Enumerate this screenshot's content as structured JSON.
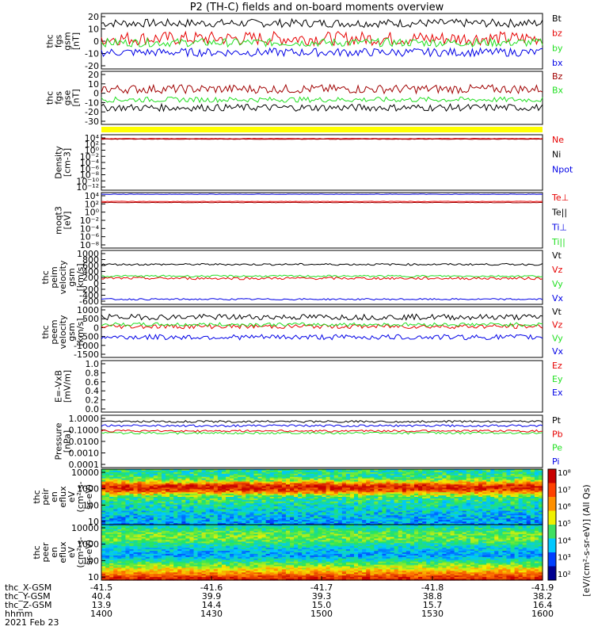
{
  "title": "P2 (TH-C) fields and on-board moments overview",
  "colors": {
    "black": "#000000",
    "red": "#e60000",
    "darkred": "#a00000",
    "green": "#22e022",
    "blue": "#0000e6",
    "yellow": "#ffff00"
  },
  "chart_data": [
    {
      "type": "line",
      "ylabel": [
        "thc",
        "fgs",
        "gsm",
        "[nT]"
      ],
      "ylim": [
        -20,
        20
      ],
      "yticks": [
        20,
        10,
        0,
        -10,
        -20
      ],
      "series": [
        {
          "name": "Bt",
          "color": "black",
          "mean": 13,
          "noise": 3
        },
        {
          "name": "bz",
          "color": "red",
          "mean": 2,
          "noise": 5
        },
        {
          "name": "by",
          "color": "green",
          "mean": -1,
          "noise": 3
        },
        {
          "name": "bx",
          "color": "blue",
          "mean": -8,
          "noise": 3
        }
      ]
    },
    {
      "type": "line",
      "ylabel": [
        "thc",
        "fgs",
        "gse",
        "[nT]"
      ],
      "ylim": [
        -35,
        25
      ],
      "yticks": [
        20,
        10,
        0,
        -10,
        -20,
        -30
      ],
      "series": [
        {
          "name": "Bz",
          "color": "darkred",
          "mean": 5,
          "noise": 5
        },
        {
          "name": "Bx",
          "color": "green",
          "mean": -7,
          "noise": 3
        },
        {
          "name": "",
          "color": "black",
          "mean": -16,
          "noise": 4
        }
      ]
    },
    {
      "type": "flag",
      "color": "yellow"
    },
    {
      "type": "line",
      "ylabel": [
        "Density",
        "[cm-3]"
      ],
      "scale": "log",
      "yticks": [
        "10⁴",
        "10²",
        "10⁰",
        "10⁻²",
        "10⁻⁴",
        "10⁻⁶",
        "10⁻⁸",
        "10⁻¹⁰",
        "10⁻¹²"
      ],
      "series": [
        {
          "name": "Ne",
          "color": "red"
        },
        {
          "name": "Ni",
          "color": "black"
        },
        {
          "name": "Npot",
          "color": "blue"
        }
      ]
    },
    {
      "type": "line",
      "ylabel": [
        "moqt3",
        "[eV]"
      ],
      "scale": "log",
      "yticks": [
        "10⁴",
        "10²",
        "10⁰",
        "10⁻²",
        "10⁻⁴",
        "10⁻⁶",
        "10⁻⁸"
      ],
      "series": [
        {
          "name": "Te⊥",
          "color": "red"
        },
        {
          "name": "Te||",
          "color": "black"
        },
        {
          "name": "Ti⊥",
          "color": "blue"
        },
        {
          "name": "Ti||",
          "color": "green"
        }
      ]
    },
    {
      "type": "line",
      "ylabel": [
        "thc",
        "peim",
        "velocity",
        "gsm",
        "[km/s]"
      ],
      "ylim": [
        -700,
        1000
      ],
      "yticks": [
        1000,
        800,
        600,
        400,
        200,
        0,
        -200,
        -400,
        -600
      ],
      "series": [
        {
          "name": "Vt",
          "color": "black",
          "mean": 560,
          "noise": 30
        },
        {
          "name": "Vz",
          "color": "red",
          "mean": 120,
          "noise": 40
        },
        {
          "name": "Vy",
          "color": "green",
          "mean": 190,
          "noise": 30
        },
        {
          "name": "Vx",
          "color": "blue",
          "mean": -540,
          "noise": 25
        }
      ]
    },
    {
      "type": "line",
      "ylabel": [
        "thc",
        "peem",
        "velocity",
        "gsm",
        "[km/s]"
      ],
      "ylim": [
        -1600,
        1100
      ],
      "yticks": [
        1000,
        500,
        0,
        -500,
        -1000,
        -1500
      ],
      "series": [
        {
          "name": "Vt",
          "color": "black",
          "mean": 550,
          "noise": 150
        },
        {
          "name": "Vz",
          "color": "red",
          "mean": 50,
          "noise": 120
        },
        {
          "name": "Vy",
          "color": "green",
          "mean": 150,
          "noise": 100
        },
        {
          "name": "Vx",
          "color": "blue",
          "mean": -520,
          "noise": 140
        }
      ]
    },
    {
      "type": "line",
      "ylabel": [
        "E=-VxB",
        "[mV/m]"
      ],
      "ylim": [
        0,
        1
      ],
      "yticks": [
        "1.0",
        "0.8",
        "0.6",
        "0.4",
        "0.2",
        "0.0"
      ],
      "series": [
        {
          "name": "Ez",
          "color": "red"
        },
        {
          "name": "Ey",
          "color": "green"
        },
        {
          "name": "Ex",
          "color": "blue"
        }
      ]
    },
    {
      "type": "line",
      "ylabel": [
        "Pressure",
        "[nPa]"
      ],
      "scale": "log",
      "yticks": [
        "1.0000",
        "0.1000",
        "0.0100",
        "0.0010",
        "0.0001"
      ],
      "series": [
        {
          "name": "Pt",
          "color": "black"
        },
        {
          "name": "Pb",
          "color": "red"
        },
        {
          "name": "Pe",
          "color": "green"
        },
        {
          "name": "Pi",
          "color": "blue"
        }
      ]
    },
    {
      "type": "heatmap",
      "ylabel": [
        "thc",
        "peir",
        "en",
        "eflux",
        "eV",
        "(cm²-s-",
        "sr-eV)"
      ],
      "yticks": [
        "10000",
        "1000",
        "100",
        "10"
      ]
    },
    {
      "type": "heatmap",
      "ylabel": [
        "thc",
        "peer",
        "en",
        "eflux",
        "eV",
        "(cm²-s-",
        "sr-eV)"
      ],
      "yticks": [
        "10000",
        "1000",
        "100",
        "10"
      ]
    }
  ],
  "colorbar": {
    "label": "[eV/(cm²-s-sr-eV)] (All Qs)",
    "ticks": [
      "10⁸",
      "10⁷",
      "10⁶",
      "10⁵",
      "10⁴",
      "10³",
      "10²"
    ]
  },
  "xaxis": {
    "rows": [
      {
        "label": "thc_X-GSM",
        "values": [
          "-41.5",
          "-41.6",
          "-41.7",
          "-41.8",
          "-41.9"
        ]
      },
      {
        "label": "thc_Y-GSM",
        "values": [
          "40.4",
          "39.9",
          "39.3",
          "38.8",
          "38.2"
        ]
      },
      {
        "label": "thc_Z-GSM",
        "values": [
          "13.9",
          "14.4",
          "15.0",
          "15.7",
          "16.4"
        ]
      },
      {
        "label": "hhmm",
        "values": [
          "1400",
          "1430",
          "1500",
          "1530",
          "1600"
        ]
      }
    ],
    "date": "2021 Feb 23"
  }
}
